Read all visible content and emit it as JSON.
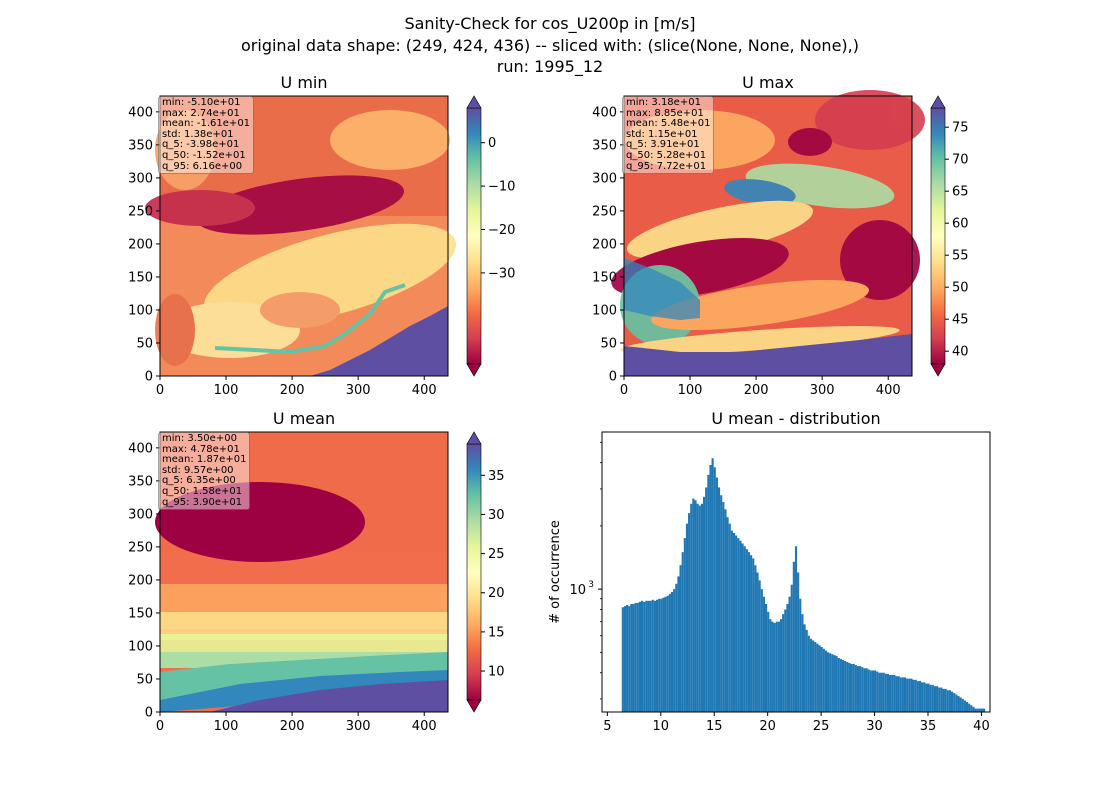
{
  "figure": {
    "title_lines": [
      "Sanity-Check for cos_U200p in [m/s]",
      "original data shape: (249, 424, 436) -- sliced with: (slice(None, None, None),)",
      "run: 1995_12"
    ]
  },
  "chart_data": [
    {
      "type": "heatmap",
      "title": "U min",
      "xlim": [
        0,
        436
      ],
      "ylim": [
        0,
        424
      ],
      "xticks": [
        0,
        100,
        200,
        300,
        400
      ],
      "yticks": [
        0,
        50,
        100,
        150,
        200,
        250,
        300,
        350,
        400
      ],
      "colorbar": {
        "range": [
          -51,
          8
        ],
        "ticks": [
          0,
          -10,
          -20,
          -30
        ],
        "tick_labels": [
          "0",
          "−10",
          "−20",
          "−30"
        ],
        "colormap": "Spectral"
      },
      "stats": [
        "min: -5.10e+01",
        "max: 2.74e+01",
        "mean: -1.61e+01",
        "std: 1.38e+01",
        "q_5: -3.98e+01",
        "q_50: -1.52e+01",
        "q_95: 6.16e+00"
      ]
    },
    {
      "type": "heatmap",
      "title": "U max",
      "xlim": [
        0,
        436
      ],
      "ylim": [
        0,
        424
      ],
      "xticks": [
        0,
        100,
        200,
        300,
        400
      ],
      "yticks": [
        0,
        50,
        100,
        150,
        200,
        250,
        300,
        350,
        400
      ],
      "colorbar": {
        "range": [
          38,
          78
        ],
        "ticks": [
          75,
          70,
          65,
          60,
          55,
          50,
          45,
          40
        ],
        "tick_labels": [
          "75",
          "70",
          "65",
          "60",
          "55",
          "50",
          "45",
          "40"
        ],
        "colormap": "Spectral"
      },
      "stats": [
        "min: 3.18e+01",
        "max: 8.85e+01",
        "mean: 5.48e+01",
        "std: 1.15e+01",
        "q_5: 3.91e+01",
        "q_50: 5.28e+01",
        "q_95: 7.72e+01"
      ]
    },
    {
      "type": "heatmap",
      "title": "U mean",
      "xlim": [
        0,
        436
      ],
      "ylim": [
        0,
        424
      ],
      "xticks": [
        0,
        100,
        200,
        300,
        400
      ],
      "yticks": [
        0,
        50,
        100,
        150,
        200,
        250,
        300,
        350,
        400
      ],
      "colorbar": {
        "range": [
          6.3,
          39
        ],
        "ticks": [
          35,
          30,
          25,
          20,
          15,
          10
        ],
        "tick_labels": [
          "35",
          "30",
          "25",
          "20",
          "15",
          "10"
        ],
        "colormap": "Spectral"
      },
      "stats": [
        "min: 3.50e+00",
        "max: 4.78e+01",
        "mean: 1.87e+01",
        "std: 9.57e+00",
        "q_5: 6.35e+00",
        "q_50: 1.58e+01",
        "q_95: 3.90e+01"
      ]
    },
    {
      "type": "bar",
      "title": "U mean - distribution",
      "ylabel": "# of occurrence",
      "yscale": "log",
      "xlim": [
        4.5,
        40.8
      ],
      "xticks": [
        5,
        10,
        15,
        20,
        25,
        30,
        35,
        40
      ],
      "ylim": [
        260,
        5600
      ],
      "ytick_major": 1000,
      "ytick_major_label": "10",
      "ytick_major_exp": "3",
      "bar_color": "#1f77b4",
      "bin_start": 6.35,
      "bin_width": 0.2,
      "values": [
        820,
        830,
        840,
        830,
        850,
        850,
        860,
        860,
        870,
        880,
        870,
        880,
        880,
        880,
        890,
        880,
        890,
        900,
        900,
        910,
        920,
        930,
        950,
        970,
        1000,
        1060,
        1150,
        1300,
        1500,
        1750,
        2050,
        2300,
        2550,
        2700,
        2650,
        2550,
        2500,
        2550,
        2750,
        3050,
        3500,
        3900,
        4200,
        3800,
        3400,
        3050,
        2800,
        2600,
        2400,
        2200,
        2050,
        1900,
        1850,
        1800,
        1750,
        1700,
        1650,
        1600,
        1550,
        1500,
        1450,
        1400,
        1300,
        1200,
        1100,
        1000,
        920,
        850,
        780,
        720,
        700,
        690,
        700,
        700,
        720,
        760,
        800,
        850,
        920,
        1050,
        1350,
        1600,
        1200,
        900,
        760,
        680,
        640,
        600,
        580,
        570,
        560,
        550,
        540,
        530,
        520,
        510,
        500,
        495,
        490,
        485,
        480,
        470,
        465,
        460,
        455,
        450,
        445,
        440,
        440,
        435,
        430,
        430,
        425,
        420,
        420,
        415,
        410,
        410,
        410,
        405,
        400,
        400,
        400,
        395,
        395,
        390,
        390,
        390,
        385,
        385,
        380,
        380,
        380,
        375,
        375,
        375,
        370,
        370,
        365,
        365,
        360,
        360,
        355,
        355,
        350,
        350,
        345,
        345,
        340,
        340,
        335,
        335,
        330,
        330,
        325,
        320,
        315,
        310,
        305,
        300,
        295,
        290,
        285,
        280,
        275,
        270,
        270,
        270,
        270,
        270
      ]
    }
  ]
}
